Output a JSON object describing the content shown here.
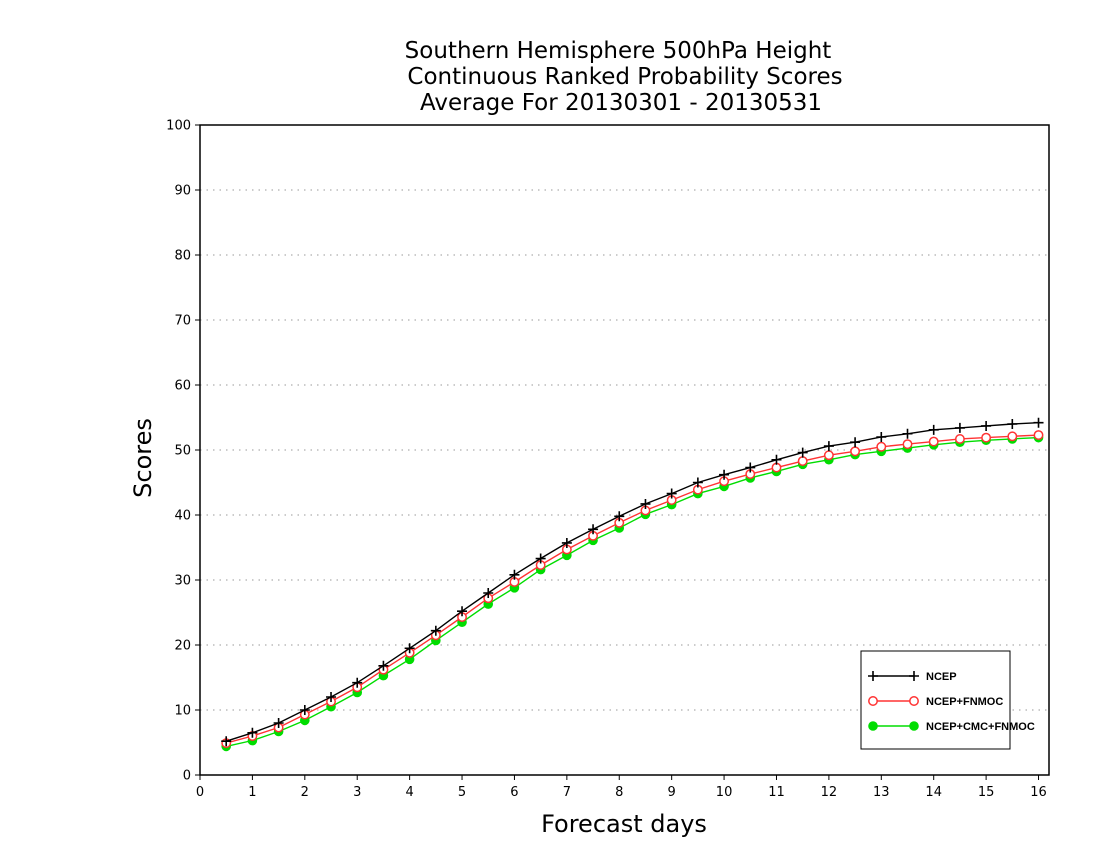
{
  "chart_data": {
    "type": "line",
    "title": [
      "Southern Hemisphere 500hPa Height",
      "Continuous Ranked Probability Scores",
      "Average For 20130301 - 20130531"
    ],
    "xlabel": "Forecast days",
    "ylabel": "Scores",
    "xlim": [
      0,
      16.2
    ],
    "ylim": [
      0,
      100
    ],
    "xticks": [
      "0",
      "1",
      "2",
      "3",
      "4",
      "5",
      "6",
      "7",
      "8",
      "9",
      "10",
      "11",
      "12",
      "13",
      "14",
      "15",
      "16"
    ],
    "yticks": [
      "0",
      "10",
      "20",
      "30",
      "40",
      "50",
      "60",
      "70",
      "80",
      "90",
      "100"
    ],
    "grid": true,
    "legend_position": "bottom-right",
    "x": [
      0.5,
      1,
      1.5,
      2,
      2.5,
      3,
      3.5,
      4,
      4.5,
      5,
      5.5,
      6,
      6.5,
      7,
      7.5,
      8,
      8.5,
      9,
      9.5,
      10,
      10.5,
      11,
      11.5,
      12,
      12.5,
      13,
      13.5,
      14,
      14.5,
      15,
      15.5,
      16
    ],
    "series": [
      {
        "name": "NCEP",
        "color": "#000000",
        "marker": "plus",
        "values": [
          5.2,
          6.5,
          8.0,
          10.0,
          12.0,
          14.2,
          16.8,
          19.5,
          22.2,
          25.2,
          28.0,
          30.8,
          33.3,
          35.7,
          37.8,
          39.8,
          41.7,
          43.3,
          45.0,
          46.2,
          47.3,
          48.5,
          49.6,
          50.6,
          51.2,
          52.0,
          52.5,
          53.1,
          53.4,
          53.7,
          54.0,
          54.2
        ]
      },
      {
        "name": "NCEP+FNMOC",
        "color": "#ff3333",
        "marker": "open-circle",
        "values": [
          4.9,
          6.0,
          7.3,
          9.3,
          11.3,
          13.5,
          16.2,
          18.8,
          21.5,
          24.3,
          27.2,
          29.7,
          32.3,
          34.7,
          36.8,
          38.8,
          40.7,
          42.3,
          43.9,
          45.2,
          46.3,
          47.3,
          48.3,
          49.2,
          49.8,
          50.5,
          50.9,
          51.3,
          51.7,
          51.9,
          52.1,
          52.3
        ]
      },
      {
        "name": "NCEP+CMC+FNMOC",
        "color": "#00dd00",
        "marker": "filled-circle",
        "values": [
          4.4,
          5.3,
          6.7,
          8.4,
          10.5,
          12.7,
          15.3,
          17.8,
          20.7,
          23.5,
          26.3,
          28.8,
          31.6,
          33.8,
          36.1,
          38.0,
          40.1,
          41.6,
          43.3,
          44.4,
          45.7,
          46.7,
          47.8,
          48.5,
          49.3,
          49.8,
          50.3,
          50.8,
          51.2,
          51.5,
          51.7,
          51.9
        ]
      }
    ]
  }
}
